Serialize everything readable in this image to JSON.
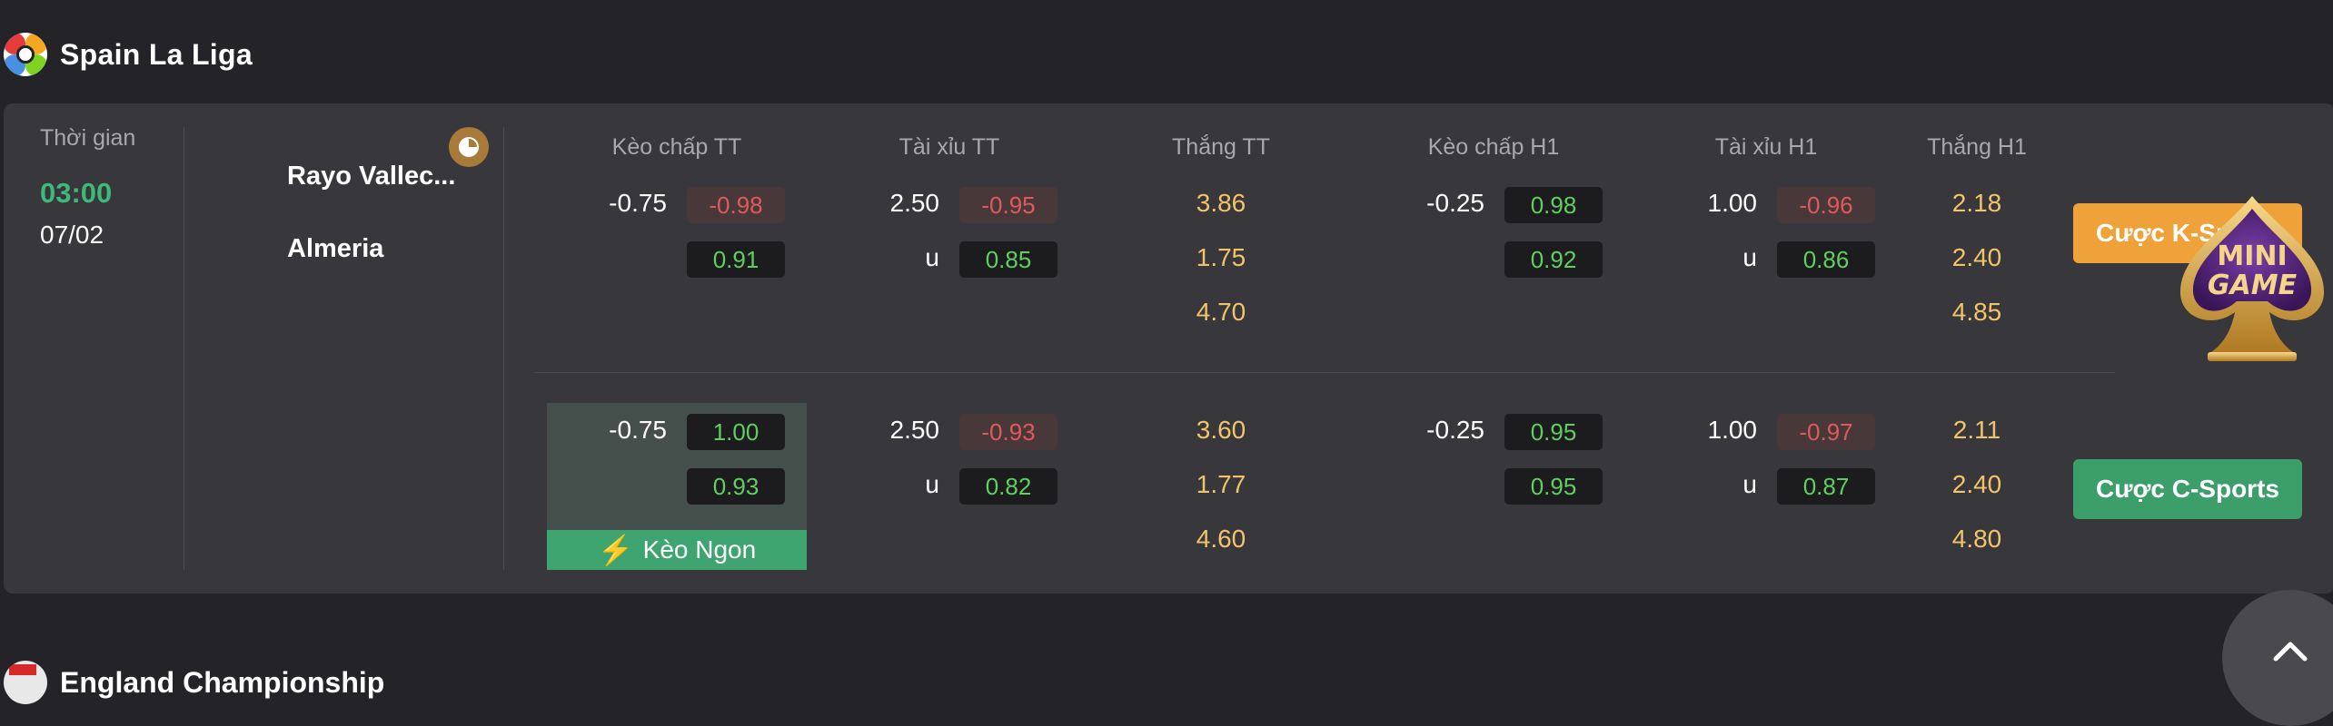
{
  "league": {
    "title": "Spain La Liga"
  },
  "match": {
    "time_label": "Thời gian",
    "time": "03:00",
    "date": "07/02",
    "home": "Rayo Vallec...",
    "away": "Almeria"
  },
  "columns": [
    "Kèo chấp TT",
    "Tài xỉu TT",
    "Thắng TT",
    "Kèo chấp H1",
    "Tài xỉu H1",
    "Thắng H1"
  ],
  "rows": [
    {
      "hdp_line": "-0.75",
      "hdp_home": "-0.98",
      "hdp_away": "0.91",
      "ou_line": "2.50",
      "ou_over": "-0.95",
      "ou_under_label": "u",
      "ou_under": "0.85",
      "win": [
        "3.86",
        "1.75",
        "4.70"
      ],
      "h1_hdp_line": "-0.25",
      "h1_hdp_home": "0.98",
      "h1_hdp_away": "0.92",
      "h1_ou_line": "1.00",
      "h1_ou_over": "-0.96",
      "h1_ou_under_label": "u",
      "h1_ou_under": "0.86",
      "h1_win": [
        "2.18",
        "2.40",
        "4.85"
      ],
      "button": "Cược K-Sports"
    },
    {
      "hdp_line": "-0.75",
      "hdp_home": "1.00",
      "hdp_away": "0.93",
      "ou_line": "2.50",
      "ou_over": "-0.93",
      "ou_under_label": "u",
      "ou_under": "0.82",
      "win": [
        "3.60",
        "1.77",
        "4.60"
      ],
      "h1_hdp_line": "-0.25",
      "h1_hdp_home": "0.95",
      "h1_hdp_away": "0.95",
      "h1_ou_line": "1.00",
      "h1_ou_over": "-0.97",
      "h1_ou_under_label": "u",
      "h1_ou_under": "0.87",
      "h1_win": [
        "2.11",
        "2.40",
        "4.80"
      ],
      "badge": "Kèo Ngon",
      "button": "Cược C-Sports"
    }
  ],
  "minigame": {
    "line1": "MINI",
    "line2": "GAME"
  },
  "next_league": {
    "title": "England Championship"
  },
  "colors": {
    "accent_green": "#3dba78",
    "odds_yellow": "#f2c46a",
    "negative_red": "#e05a5a",
    "positive_green": "#5fcf5f",
    "k_sports": "#f0a23a",
    "c_sports": "#3c9f6a"
  },
  "icons": [
    "la-liga-logo-icon",
    "stats-clock-icon",
    "lightning-icon",
    "spade-minigame-icon",
    "chevron-up-icon",
    "sky-bet-logo-icon"
  ]
}
